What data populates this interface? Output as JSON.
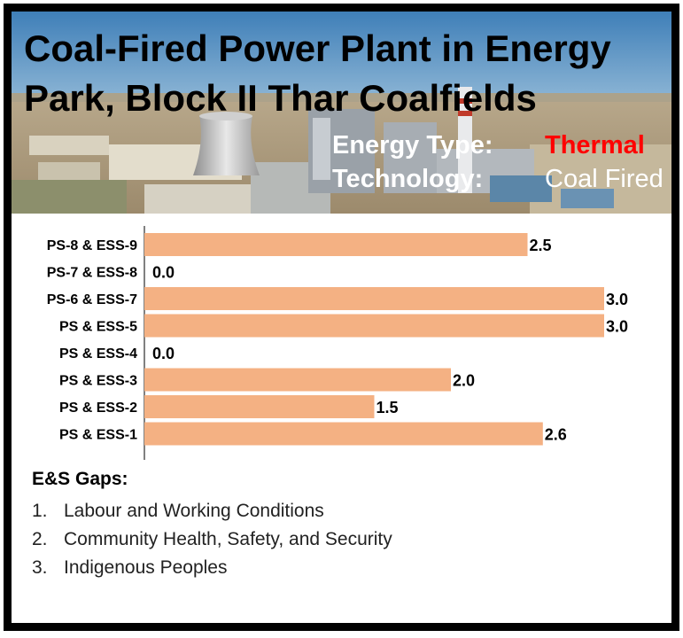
{
  "banner": {
    "title": "Coal-Fired Power Plant in Energy Park, Block II Thar Coalfields",
    "energy_type_label": "Energy Type:",
    "energy_type_value": "Thermal",
    "technology_label": "Technology:",
    "technology_value": "Coal Fired"
  },
  "chart_data": {
    "type": "bar",
    "orientation": "horizontal",
    "categories": [
      "PS-8 & ESS-9",
      "PS-7 & ESS-8",
      "PS-6 & ESS-7",
      "PS & ESS-5",
      "PS & ESS-4",
      "PS & ESS-3",
      "PS & ESS-2",
      "PS & ESS-1"
    ],
    "values": [
      2.5,
      0.0,
      3.0,
      3.0,
      0.0,
      2.0,
      1.5,
      2.6
    ],
    "value_labels": [
      "2.5",
      "0.0",
      "3.0",
      "3.0",
      "0.0",
      "2.0",
      "1.5",
      "2.6"
    ],
    "xlim": [
      0,
      3
    ],
    "bar_color": "#f4b183",
    "grid": false,
    "title": "",
    "xlabel": "",
    "ylabel": ""
  },
  "gaps": {
    "heading": "E&S Gaps:",
    "items": [
      {
        "num": "1.",
        "text": "Labour and Working Conditions"
      },
      {
        "num": "2.",
        "text": "Community Health, Safety, and Security"
      },
      {
        "num": "3.",
        "text": "Indigenous Peoples"
      }
    ]
  },
  "colors": {
    "frame": "#000000",
    "bar": "#f4b183",
    "thermal": "#ff0000"
  }
}
